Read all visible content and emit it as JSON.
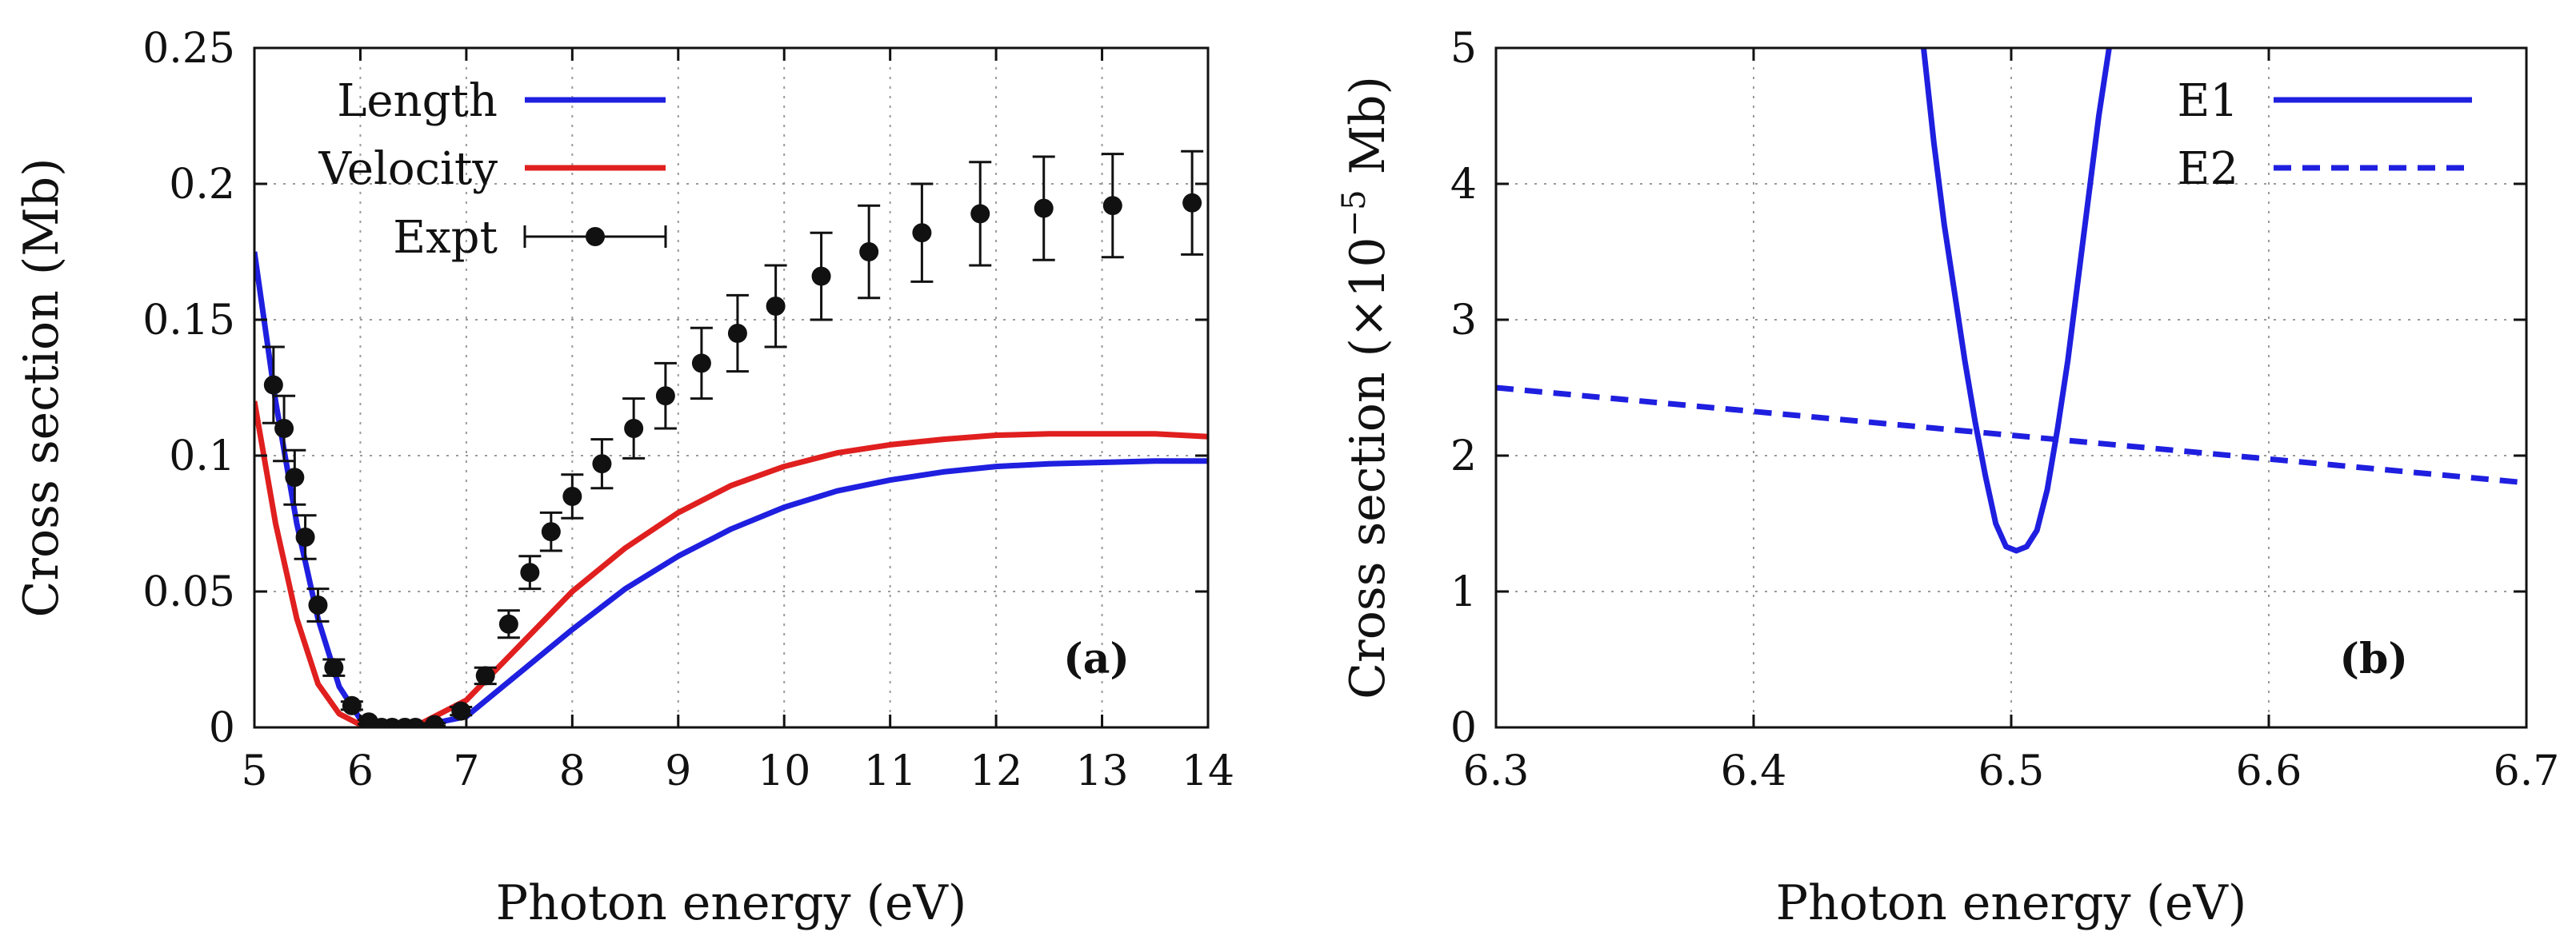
{
  "chart_data": [
    {
      "panel": "(a)",
      "type": "line",
      "xlabel": "Photon energy (eV)",
      "ylabel": "Cross section (Mb)",
      "xlim": [
        5,
        14
      ],
      "ylim": [
        0,
        0.25
      ],
      "xticks": [
        "5",
        "6",
        "7",
        "8",
        "9",
        "10",
        "11",
        "12",
        "13",
        "14"
      ],
      "yticks": [
        "0",
        "0.05",
        "0.1",
        "0.15",
        "0.2",
        "0.25"
      ],
      "grid": true,
      "legend_position": "top-left",
      "series": [
        {
          "name": "Length",
          "color": "#1f1fe0",
          "style": "solid",
          "x": [
            5.0,
            5.2,
            5.4,
            5.6,
            5.8,
            6.0,
            6.2,
            6.5,
            7.0,
            7.5,
            8.0,
            8.5,
            9.0,
            9.5,
            10.0,
            10.5,
            11.0,
            11.5,
            12.0,
            12.5,
            13.0,
            13.5,
            14.0
          ],
          "y": [
            0.175,
            0.12,
            0.075,
            0.04,
            0.015,
            0.003,
            0.0005,
            0.0,
            0.004,
            0.02,
            0.036,
            0.051,
            0.063,
            0.073,
            0.081,
            0.087,
            0.091,
            0.094,
            0.096,
            0.097,
            0.0975,
            0.098,
            0.098
          ]
        },
        {
          "name": "Velocity",
          "color": "#e01f1f",
          "style": "solid",
          "x": [
            5.0,
            5.2,
            5.4,
            5.6,
            5.8,
            6.0,
            6.2,
            6.5,
            7.0,
            7.5,
            8.0,
            8.5,
            9.0,
            9.5,
            10.0,
            10.5,
            11.0,
            11.5,
            12.0,
            12.5,
            13.0,
            13.5,
            14.0
          ],
          "y": [
            0.12,
            0.075,
            0.04,
            0.016,
            0.005,
            0.001,
            0.0,
            0.0,
            0.01,
            0.03,
            0.05,
            0.066,
            0.079,
            0.089,
            0.096,
            0.101,
            0.104,
            0.106,
            0.1075,
            0.108,
            0.108,
            0.108,
            0.107
          ]
        },
        {
          "name": "Expt",
          "color": "#111111",
          "style": "points-errorbars",
          "x": [
            5.18,
            5.28,
            5.38,
            5.48,
            5.6,
            5.75,
            5.92,
            6.08,
            6.2,
            6.3,
            6.42,
            6.52,
            6.7,
            6.95,
            7.18,
            7.4,
            7.6,
            7.8,
            8.0,
            8.28,
            8.58,
            8.88,
            9.22,
            9.56,
            9.92,
            10.35,
            10.8,
            11.3,
            11.85,
            12.45,
            13.1,
            13.85
          ],
          "y": [
            0.126,
            0.11,
            0.092,
            0.07,
            0.045,
            0.022,
            0.008,
            0.002,
            0.0,
            0.0,
            0.0,
            0.0,
            0.001,
            0.006,
            0.019,
            0.038,
            0.057,
            0.072,
            0.085,
            0.097,
            0.11,
            0.122,
            0.134,
            0.145,
            0.155,
            0.166,
            0.175,
            0.182,
            0.189,
            0.191,
            0.192,
            0.193
          ],
          "err": [
            0.014,
            0.012,
            0.01,
            0.008,
            0.006,
            0.003,
            0.0015,
            0.0008,
            0.0,
            0.0,
            0.0,
            0.0,
            0.0005,
            0.0015,
            0.003,
            0.005,
            0.006,
            0.007,
            0.008,
            0.009,
            0.011,
            0.012,
            0.013,
            0.014,
            0.015,
            0.016,
            0.017,
            0.018,
            0.019,
            0.019,
            0.019,
            0.019
          ]
        }
      ]
    },
    {
      "panel": "(b)",
      "type": "line",
      "xlabel": "Photon energy (eV)",
      "ylabel_prefix": "Cross section (×10",
      "ylabel_exponent": "−5",
      "ylabel_suffix": " Mb)",
      "xlim": [
        6.3,
        6.7
      ],
      "ylim": [
        0,
        5
      ],
      "xticks": [
        "6.3",
        "6.4",
        "6.5",
        "6.6",
        "6.7"
      ],
      "yticks": [
        "0",
        "1",
        "2",
        "3",
        "4",
        "5"
      ],
      "grid": true,
      "legend_position": "top-right",
      "series": [
        {
          "name": "E1",
          "color": "#1f1fe0",
          "style": "solid",
          "x": [
            6.466,
            6.47,
            6.474,
            6.478,
            6.482,
            6.486,
            6.49,
            6.494,
            6.498,
            6.502,
            6.506,
            6.51,
            6.514,
            6.518,
            6.522,
            6.526,
            6.53,
            6.534,
            6.538
          ],
          "y": [
            5.0,
            4.3,
            3.7,
            3.2,
            2.7,
            2.25,
            1.85,
            1.5,
            1.33,
            1.3,
            1.33,
            1.45,
            1.75,
            2.2,
            2.7,
            3.3,
            3.9,
            4.5,
            5.0
          ]
        },
        {
          "name": "E2",
          "color": "#1f1fe0",
          "style": "dashed",
          "x": [
            6.3,
            6.7
          ],
          "y": [
            2.5,
            1.8
          ]
        }
      ]
    }
  ]
}
